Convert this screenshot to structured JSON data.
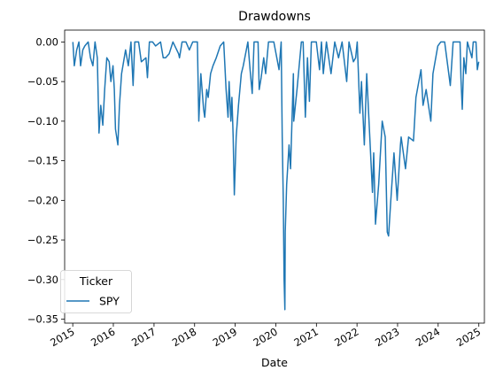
{
  "chart_data": {
    "type": "line",
    "title": "Drawdowns",
    "xlabel": "Date",
    "ylabel": "",
    "ylim": [
      -0.355,
      0.015
    ],
    "xlim": [
      "2014-10-20",
      "2025-02-20"
    ],
    "grid": false,
    "legend": {
      "title": "Ticker",
      "placement": "bottom-left",
      "entries": [
        "SPY"
      ]
    },
    "x_ticks": [
      "2015",
      "2016",
      "2017",
      "2018",
      "2019",
      "2020",
      "2021",
      "2022",
      "2023",
      "2024",
      "2025"
    ],
    "y_ticks": [
      "0.00",
      "−0.05",
      "−0.10",
      "−0.15",
      "−0.20",
      "−0.25",
      "−0.30",
      "−0.35"
    ],
    "series": [
      {
        "name": "SPY",
        "color": "#1f77b4",
        "points": [
          [
            "2015-01-02",
            0.0
          ],
          [
            "2015-01-15",
            -0.03
          ],
          [
            "2015-02-05",
            -0.01
          ],
          [
            "2015-02-25",
            0.0
          ],
          [
            "2015-03-12",
            -0.03
          ],
          [
            "2015-04-01",
            -0.01
          ],
          [
            "2015-04-20",
            -0.005
          ],
          [
            "2015-05-20",
            0.0
          ],
          [
            "2015-06-10",
            -0.02
          ],
          [
            "2015-07-01",
            -0.03
          ],
          [
            "2015-07-20",
            0.0
          ],
          [
            "2015-08-10",
            -0.02
          ],
          [
            "2015-08-25",
            -0.115
          ],
          [
            "2015-09-10",
            -0.08
          ],
          [
            "2015-09-28",
            -0.105
          ],
          [
            "2015-10-15",
            -0.06
          ],
          [
            "2015-11-03",
            -0.02
          ],
          [
            "2015-11-25",
            -0.025
          ],
          [
            "2015-12-10",
            -0.05
          ],
          [
            "2015-12-29",
            -0.03
          ],
          [
            "2016-01-10",
            -0.06
          ],
          [
            "2016-01-20",
            -0.11
          ],
          [
            "2016-02-11",
            -0.13
          ],
          [
            "2016-02-25",
            -0.08
          ],
          [
            "2016-03-15",
            -0.04
          ],
          [
            "2016-04-20",
            -0.01
          ],
          [
            "2016-05-15",
            -0.03
          ],
          [
            "2016-06-08",
            0.0
          ],
          [
            "2016-06-27",
            -0.055
          ],
          [
            "2016-07-12",
            0.0
          ],
          [
            "2016-08-15",
            0.0
          ],
          [
            "2016-09-09",
            -0.025
          ],
          [
            "2016-10-20",
            -0.02
          ],
          [
            "2016-11-03",
            -0.045
          ],
          [
            "2016-11-20",
            0.0
          ],
          [
            "2016-12-20",
            0.0
          ],
          [
            "2017-01-15",
            -0.005
          ],
          [
            "2017-03-01",
            0.0
          ],
          [
            "2017-03-25",
            -0.02
          ],
          [
            "2017-04-15",
            -0.02
          ],
          [
            "2017-05-17",
            -0.015
          ],
          [
            "2017-06-20",
            0.0
          ],
          [
            "2017-08-10",
            -0.015
          ],
          [
            "2017-08-18",
            -0.02
          ],
          [
            "2017-09-10",
            0.0
          ],
          [
            "2017-10-15",
            0.0
          ],
          [
            "2017-11-15",
            -0.01
          ],
          [
            "2017-12-15",
            0.0
          ],
          [
            "2018-01-26",
            0.0
          ],
          [
            "2018-02-08",
            -0.1
          ],
          [
            "2018-02-26",
            -0.04
          ],
          [
            "2018-03-23",
            -0.085
          ],
          [
            "2018-04-02",
            -0.095
          ],
          [
            "2018-04-20",
            -0.06
          ],
          [
            "2018-05-03",
            -0.07
          ],
          [
            "2018-05-25",
            -0.04
          ],
          [
            "2018-06-15",
            -0.03
          ],
          [
            "2018-07-15",
            -0.02
          ],
          [
            "2018-08-20",
            -0.005
          ],
          [
            "2018-09-20",
            0.0
          ],
          [
            "2018-10-11",
            -0.06
          ],
          [
            "2018-10-29",
            -0.095
          ],
          [
            "2018-11-07",
            -0.05
          ],
          [
            "2018-11-23",
            -0.1
          ],
          [
            "2018-12-03",
            -0.07
          ],
          [
            "2018-12-14",
            -0.12
          ],
          [
            "2018-12-24",
            -0.193
          ],
          [
            "2019-01-10",
            -0.12
          ],
          [
            "2019-01-31",
            -0.08
          ],
          [
            "2019-02-25",
            -0.04
          ],
          [
            "2019-03-15",
            -0.03
          ],
          [
            "2019-04-25",
            0.0
          ],
          [
            "2019-05-15",
            -0.035
          ],
          [
            "2019-06-03",
            -0.065
          ],
          [
            "2019-06-20",
            0.0
          ],
          [
            "2019-07-26",
            0.0
          ],
          [
            "2019-08-05",
            -0.06
          ],
          [
            "2019-08-23",
            -0.045
          ],
          [
            "2019-09-15",
            -0.02
          ],
          [
            "2019-10-02",
            -0.04
          ],
          [
            "2019-10-28",
            0.0
          ],
          [
            "2019-12-15",
            0.0
          ],
          [
            "2020-01-31",
            -0.035
          ],
          [
            "2020-02-19",
            0.0
          ],
          [
            "2020-02-28",
            -0.12
          ],
          [
            "2020-03-09",
            -0.2
          ],
          [
            "2020-03-16",
            -0.3
          ],
          [
            "2020-03-23",
            -0.338
          ],
          [
            "2020-03-26",
            -0.24
          ],
          [
            "2020-04-08",
            -0.18
          ],
          [
            "2020-04-30",
            -0.13
          ],
          [
            "2020-05-13",
            -0.16
          ],
          [
            "2020-06-08",
            -0.04
          ],
          [
            "2020-06-11",
            -0.1
          ],
          [
            "2020-07-10",
            -0.06
          ],
          [
            "2020-08-18",
            0.0
          ],
          [
            "2020-09-03",
            0.0
          ],
          [
            "2020-09-23",
            -0.095
          ],
          [
            "2020-10-12",
            -0.02
          ],
          [
            "2020-10-30",
            -0.075
          ],
          [
            "2020-11-16",
            0.0
          ],
          [
            "2020-12-31",
            0.0
          ],
          [
            "2021-01-29",
            -0.035
          ],
          [
            "2021-02-15",
            0.0
          ],
          [
            "2021-03-04",
            -0.04
          ],
          [
            "2021-04-01",
            0.0
          ],
          [
            "2021-05-12",
            -0.04
          ],
          [
            "2021-06-15",
            0.0
          ],
          [
            "2021-07-19",
            -0.02
          ],
          [
            "2021-08-20",
            0.0
          ],
          [
            "2021-09-30",
            -0.05
          ],
          [
            "2021-10-21",
            0.0
          ],
          [
            "2021-11-30",
            -0.025
          ],
          [
            "2021-12-20",
            -0.02
          ],
          [
            "2022-01-03",
            0.0
          ],
          [
            "2022-01-27",
            -0.09
          ],
          [
            "2022-02-10",
            -0.05
          ],
          [
            "2022-03-08",
            -0.13
          ],
          [
            "2022-03-29",
            -0.04
          ],
          [
            "2022-04-29",
            -0.13
          ],
          [
            "2022-05-20",
            -0.19
          ],
          [
            "2022-05-31",
            -0.14
          ],
          [
            "2022-06-16",
            -0.23
          ],
          [
            "2022-07-15",
            -0.18
          ],
          [
            "2022-08-16",
            -0.1
          ],
          [
            "2022-09-12",
            -0.12
          ],
          [
            "2022-09-30",
            -0.24
          ],
          [
            "2022-10-12",
            -0.245
          ],
          [
            "2022-11-01",
            -0.2
          ],
          [
            "2022-11-30",
            -0.14
          ],
          [
            "2022-12-28",
            -0.2
          ],
          [
            "2023-01-27",
            -0.13
          ],
          [
            "2023-02-02",
            -0.12
          ],
          [
            "2023-03-13",
            -0.16
          ],
          [
            "2023-04-10",
            -0.12
          ],
          [
            "2023-05-24",
            -0.125
          ],
          [
            "2023-06-15",
            -0.07
          ],
          [
            "2023-07-31",
            -0.035
          ],
          [
            "2023-08-18",
            -0.08
          ],
          [
            "2023-09-15",
            -0.06
          ],
          [
            "2023-10-27",
            -0.1
          ],
          [
            "2023-11-15",
            -0.04
          ],
          [
            "2023-12-29",
            -0.005
          ],
          [
            "2024-01-24",
            0.0
          ],
          [
            "2024-02-28",
            0.0
          ],
          [
            "2024-04-19",
            -0.055
          ],
          [
            "2024-05-15",
            0.0
          ],
          [
            "2024-06-20",
            0.0
          ],
          [
            "2024-07-16",
            0.0
          ],
          [
            "2024-07-24",
            -0.045
          ],
          [
            "2024-08-05",
            -0.085
          ],
          [
            "2024-08-19",
            -0.02
          ],
          [
            "2024-09-06",
            -0.04
          ],
          [
            "2024-09-20",
            0.0
          ],
          [
            "2024-10-31",
            -0.02
          ],
          [
            "2024-11-12",
            0.0
          ],
          [
            "2024-12-06",
            0.0
          ],
          [
            "2024-12-18",
            -0.035
          ],
          [
            "2024-12-31",
            -0.025
          ]
        ]
      }
    ]
  }
}
